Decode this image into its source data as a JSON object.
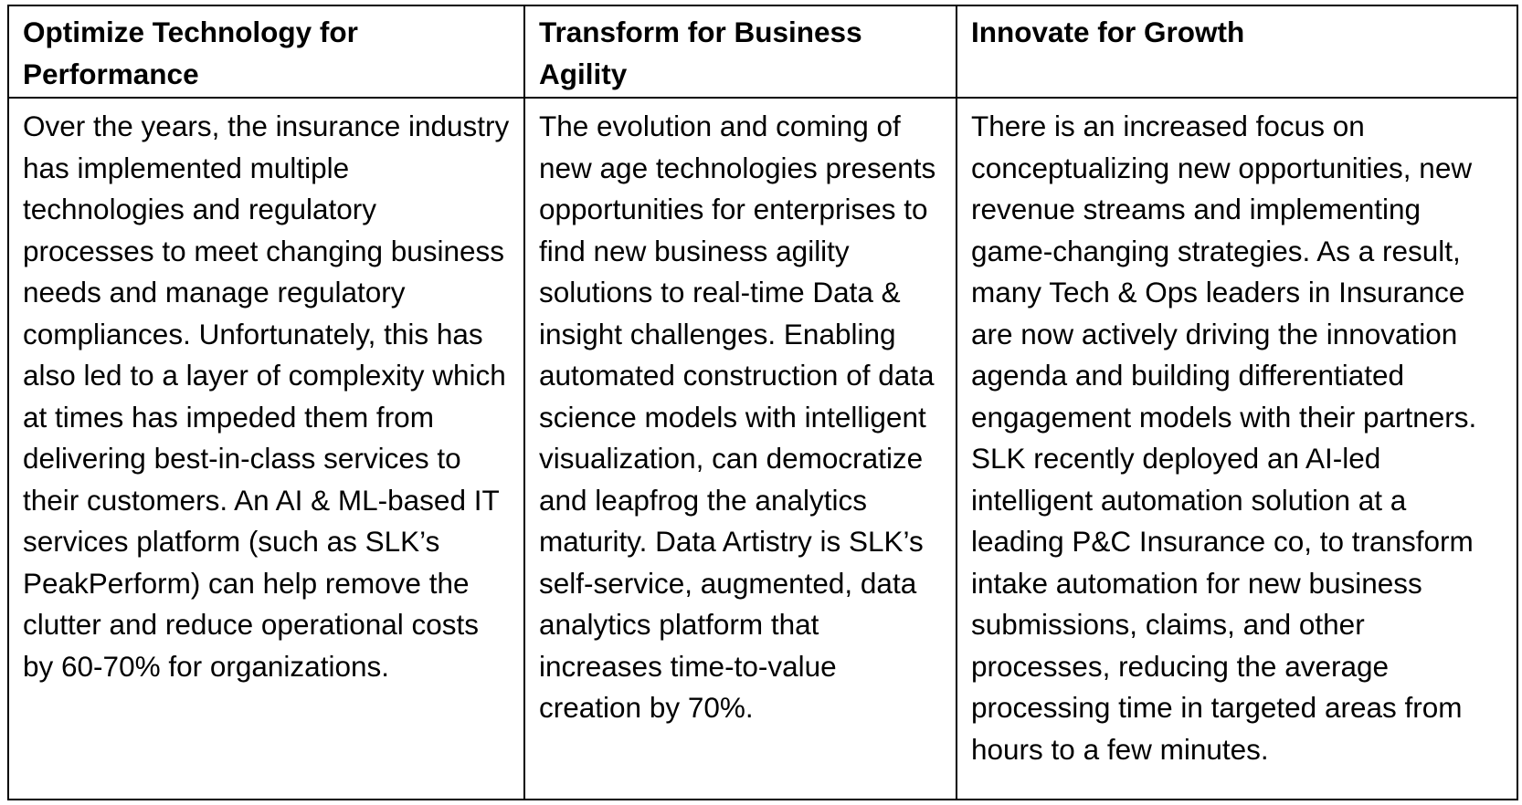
{
  "table": {
    "headers": [
      "Optimize Technology for Performance",
      "Transform for Business Agility",
      "Innovate for Growth"
    ],
    "cells": [
      "Over the years, the insurance industry has implemented multiple technologies and regulatory processes to meet changing business needs and manage regulatory compliances. Unfortunately, this has also led to a layer of complexity which at times has impeded them from delivering best-in-class services to their customers. An AI & ML-based IT services platform (such as SLK’s PeakPerform) can help remove the clutter and reduce operational costs by 60-70% for organizations.",
      "The evolution and coming of new age technologies presents opportunities for enterprises to find new business agility solutions to real-time Data & insight challenges. Enabling automated construction of data science models with intelligent visualization, can democratize and leapfrog the analytics maturity. Data Artistry is SLK’s self-service, augmented, data analytics platform that increases time-to-value creation by 70%.",
      "There is an increased focus on conceptualizing new opportunities, new revenue streams and implementing game-changing strategies. As a result, many Tech & Ops leaders in Insurance are now actively driving the innovation agenda and building differentiated engagement models with their partners. SLK recently deployed an AI-led intelligent automation solution at a leading P&C Insurance co, to transform intake automation for new business submissions, claims, and other processes, reducing the average processing time in targeted areas from hours to a few minutes."
    ]
  }
}
